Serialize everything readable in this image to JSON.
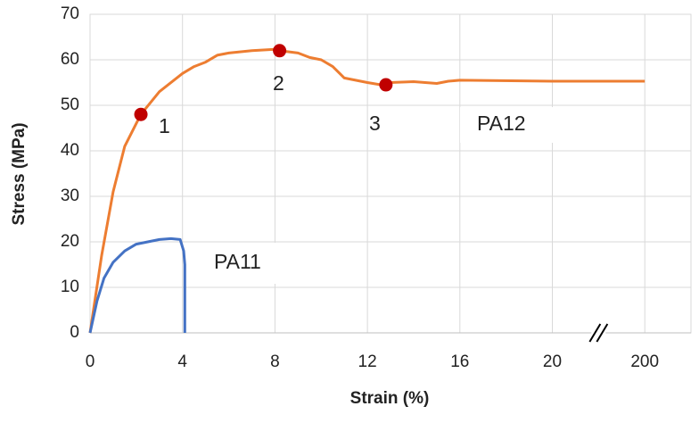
{
  "chart_data": {
    "type": "line",
    "xlabel": "Strain (%)",
    "ylabel": "Stress (MPa)",
    "xticks": [
      0,
      4,
      8,
      12,
      16,
      20,
      200
    ],
    "x_axis_break": true,
    "ylim": [
      0,
      70
    ],
    "yticks": [
      0,
      10,
      20,
      30,
      40,
      50,
      60,
      70
    ],
    "grid": true,
    "series": [
      {
        "name": "PA12",
        "color": "#ed7d31",
        "x": [
          0,
          0.5,
          1,
          1.5,
          2,
          2.2,
          3,
          4,
          4.5,
          5,
          5.5,
          6,
          7,
          8,
          8.2,
          9,
          9.5,
          10,
          10.5,
          11,
          12,
          12.6,
          13,
          14,
          15,
          15.5,
          16,
          20,
          200
        ],
        "values": [
          0,
          17,
          31,
          41,
          46,
          48,
          53,
          57,
          58.5,
          59.5,
          61,
          61.5,
          62,
          62.3,
          62,
          61.5,
          60.5,
          60,
          58.5,
          56,
          55,
          54.5,
          55,
          55.2,
          54.8,
          55.3,
          55.5,
          55.3,
          55.3
        ]
      },
      {
        "name": "PA11",
        "color": "#4472c4",
        "x": [
          0,
          0.3,
          0.6,
          1,
          1.5,
          2,
          2.5,
          3,
          3.5,
          3.9,
          4.05,
          4.1,
          4.1
        ],
        "values": [
          0,
          7,
          12,
          15.5,
          18,
          19.5,
          20,
          20.5,
          20.7,
          20.5,
          18,
          15,
          0
        ]
      }
    ],
    "highlighted_points": {
      "color": "#c00000",
      "x": [
        2.2,
        8.2,
        12.8
      ],
      "values": [
        48,
        62,
        54.5
      ],
      "labels": [
        "1",
        "2",
        "3"
      ]
    }
  }
}
